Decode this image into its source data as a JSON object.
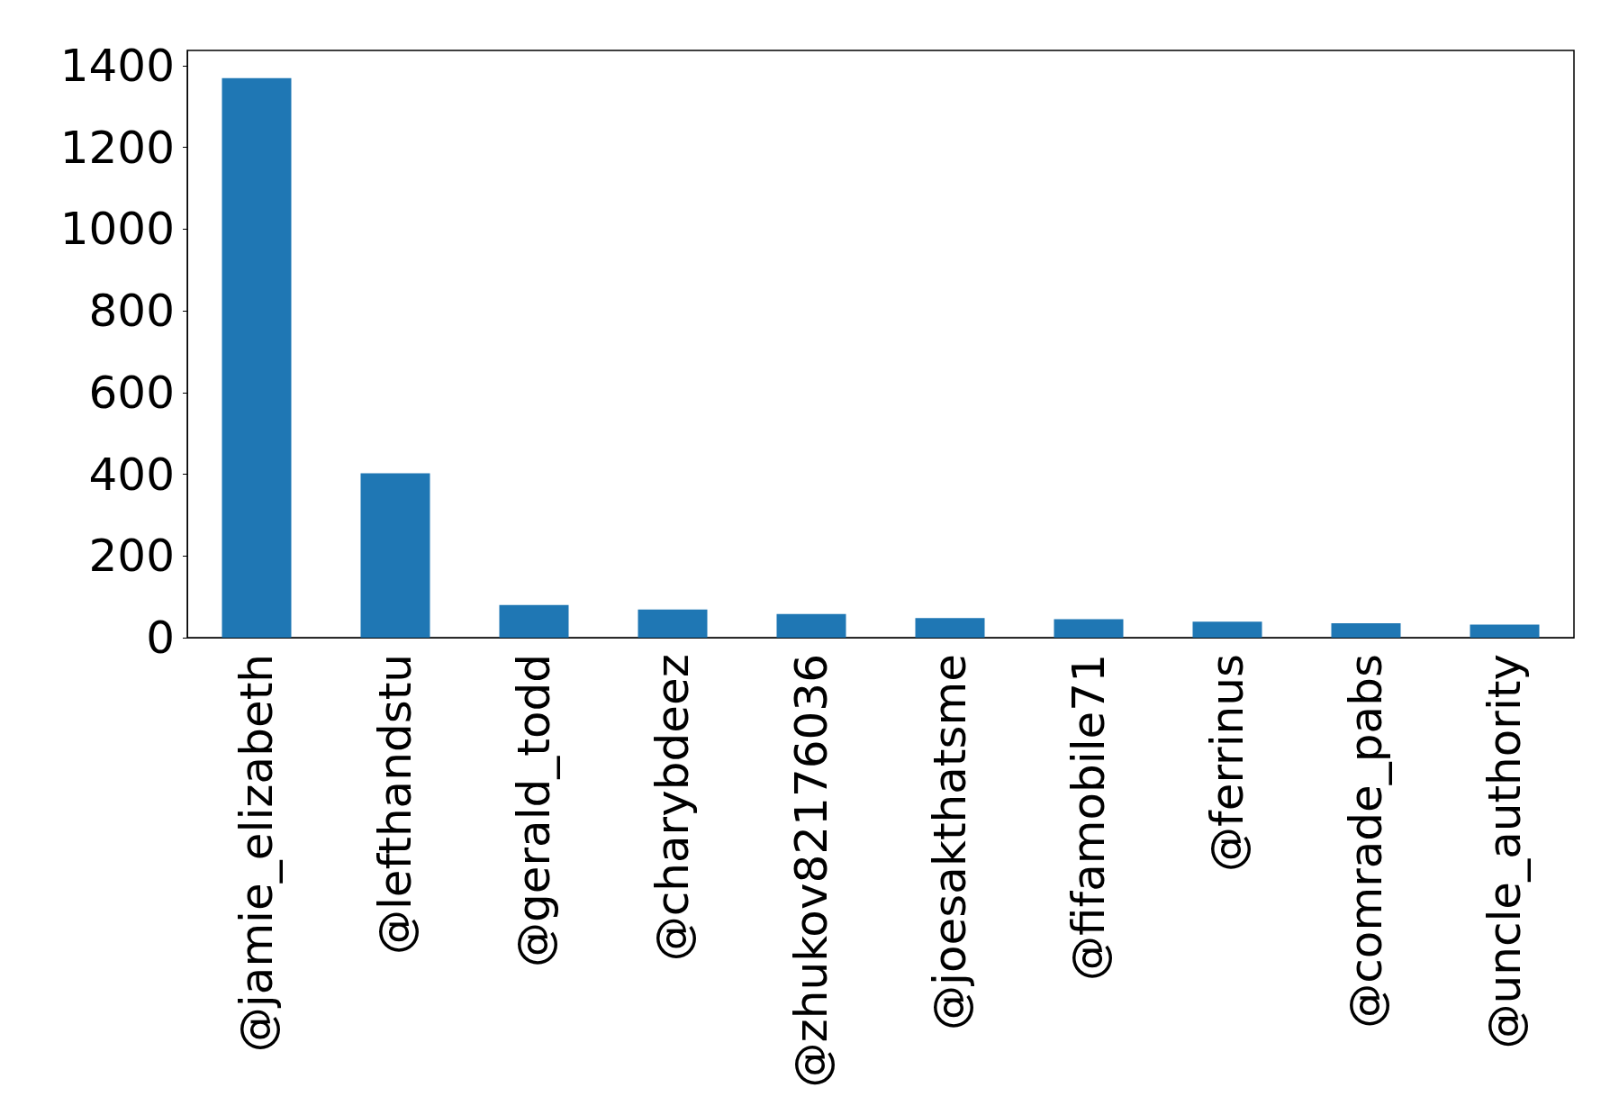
{
  "chart_data": {
    "type": "bar",
    "categories": [
      "@jamie_elizabeth",
      "@lefthandstu",
      "@gerald_todd",
      "@charybdeez",
      "@zhukov82176036",
      "@joesakthatsme",
      "@fifamobile71",
      "@ferrinus",
      "@comrade_pabs",
      "@uncle_authority"
    ],
    "values": [
      1369,
      402,
      80,
      69,
      58,
      48,
      45,
      39,
      35,
      32
    ],
    "color": "#1f77b4",
    "ylim": [
      0,
      1437
    ],
    "yticks": [
      0,
      200,
      400,
      600,
      800,
      1000,
      1200,
      1400
    ],
    "grid": false
  }
}
